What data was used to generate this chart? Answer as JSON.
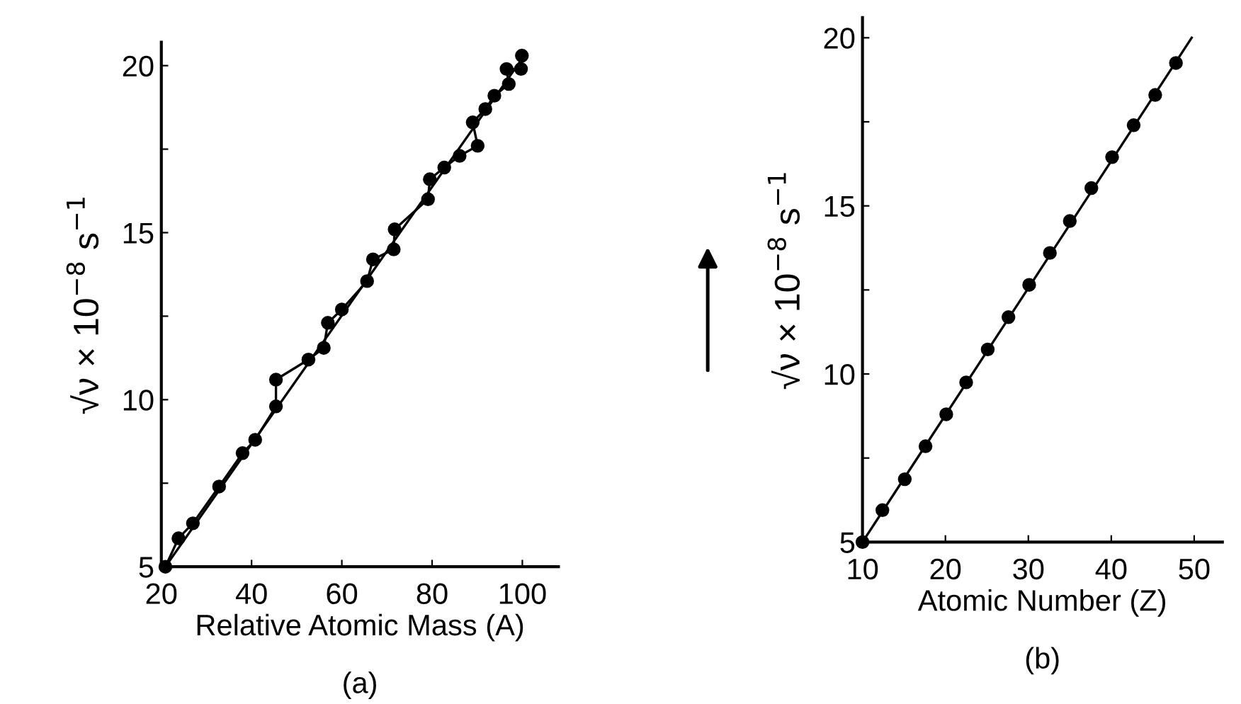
{
  "chart_data": [
    {
      "type": "line",
      "xlabel": "Relative Atomic Mass (A)",
      "ylabel": "√ν × 10$^{−8}$ s$^{−1}$",
      "annotations": [
        "(a)"
      ],
      "xlim": [
        20,
        108
      ],
      "ylim": [
        5,
        20.7
      ],
      "xticks": [
        20,
        40,
        60,
        80,
        100
      ],
      "yticks": [
        5,
        {
          "value": 7.5,
          "label": null
        },
        10,
        {
          "value": 12.5,
          "label": null
        },
        15,
        {
          "value": 17.5,
          "label": null
        },
        20
      ],
      "series": [
        {
          "color": "#000000",
          "marker": "circle",
          "x": [
            20.9,
            23.8,
            27.0,
            32.8,
            38.0,
            40.8,
            45.4,
            45.4,
            52.6,
            56.0,
            56.9,
            60.0,
            65.6,
            66.9,
            71.5,
            71.7,
            79.1,
            79.5,
            82.7,
            86.1,
            90.1,
            89.0,
            91.8,
            93.8,
            97.0,
            96.5,
            99.7,
            99.9
          ],
          "values": [
            5.0,
            5.85,
            6.3,
            7.4,
            8.4,
            8.8,
            9.8,
            10.6,
            11.2,
            11.55,
            12.3,
            12.7,
            13.55,
            14.2,
            14.5,
            15.1,
            16.0,
            16.6,
            16.95,
            17.3,
            17.6,
            18.3,
            18.7,
            19.1,
            19.45,
            19.9,
            19.9,
            20.3
          ]
        },
        {
          "color": "#000000",
          "type": "line",
          "x": [
            20.9,
            99.9
          ],
          "values": [
            5.0,
            20.2
          ]
        }
      ]
    },
    {
      "type": "line",
      "xlabel": "Atomic Number (Z)",
      "ylabel": "√ν × 10$^{−8}$ s$^{−1}$",
      "annotations": [
        "(b)"
      ],
      "xlim": [
        10,
        53.4
      ],
      "ylim": [
        5,
        20.6
      ],
      "xticks": [
        10,
        20,
        30,
        40,
        50
      ],
      "yticks": [
        5,
        {
          "value": 7.5,
          "label": null
        },
        10,
        {
          "value": 12.5,
          "label": null
        },
        15,
        {
          "value": 17.5,
          "label": null
        },
        20
      ],
      "series": [
        {
          "color": "#000000",
          "type": "scatter",
          "marker": "circle",
          "x": [
            10,
            12.4,
            15.1,
            17.6,
            20.1,
            22.5,
            25.1,
            27.6,
            30.1,
            32.6,
            35.0,
            37.6,
            40.1,
            42.7,
            45.3,
            47.8
          ],
          "values": [
            5.0,
            5.95,
            6.87,
            7.85,
            8.8,
            9.75,
            10.73,
            11.69,
            12.65,
            13.6,
            14.55,
            15.53,
            16.45,
            17.4,
            18.3,
            19.25
          ]
        },
        {
          "color": "#000000",
          "type": "line",
          "x": [
            10,
            49.7
          ],
          "values": [
            5.0,
            20.0
          ]
        }
      ]
    }
  ]
}
